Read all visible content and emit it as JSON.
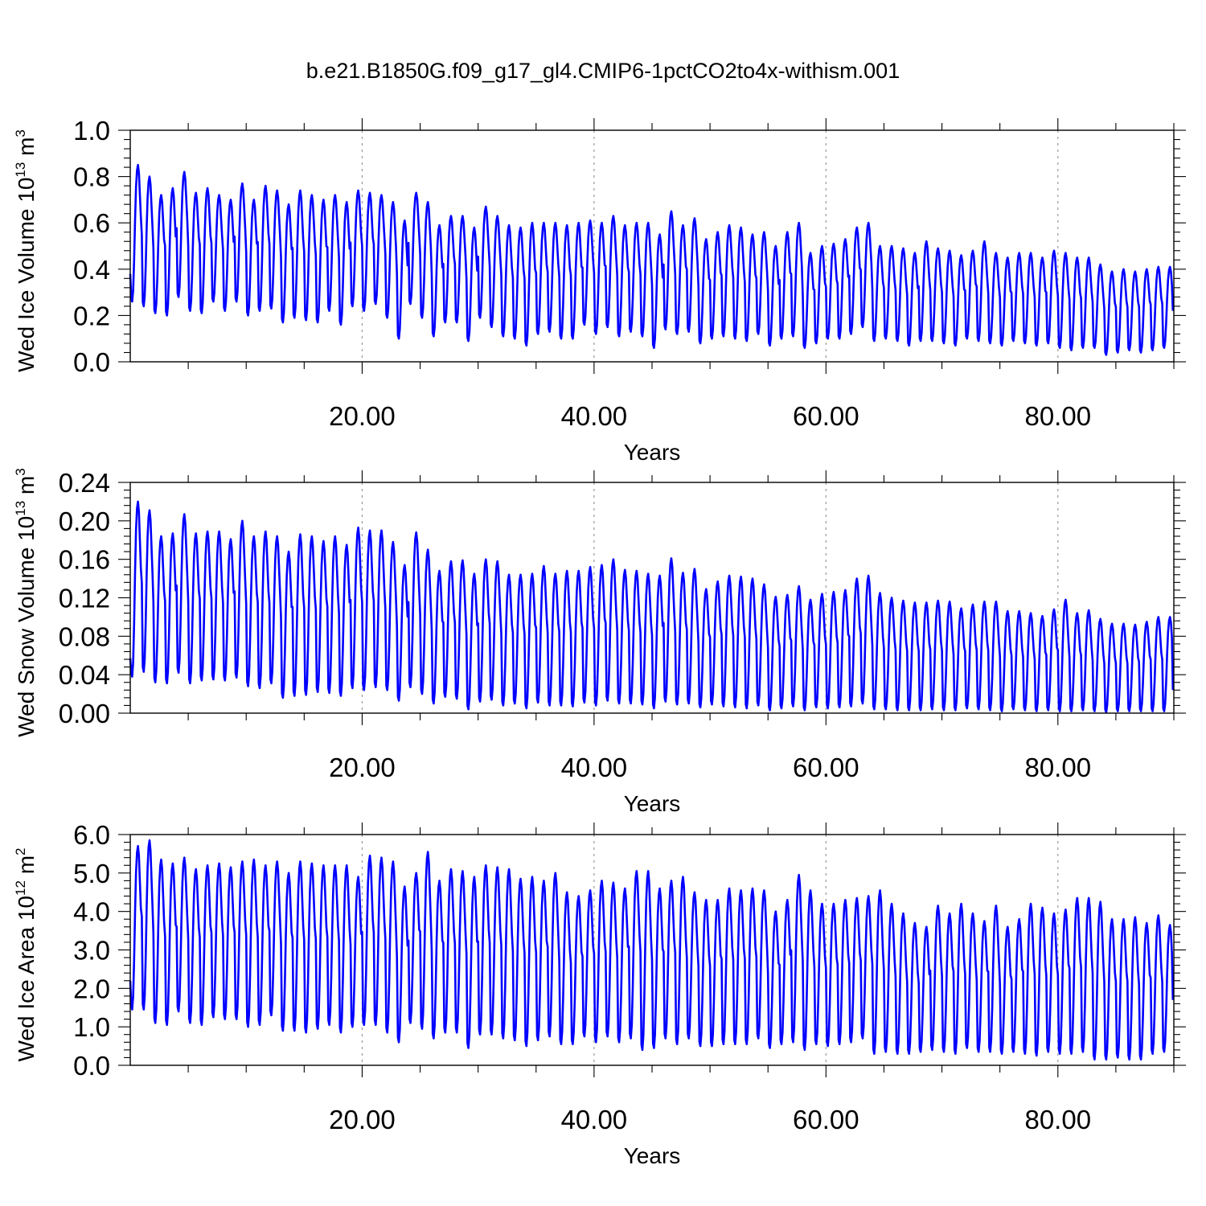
{
  "title": "b.e21.B1850G.f09_g17_gl4.CMIP6-1pctCO2to4x-withism.001",
  "colors": {
    "series": "#0000ff",
    "grid": "#9a9a9a",
    "frame": "#000000"
  },
  "chart_data": [
    {
      "type": "line",
      "title": "",
      "xlabel": "Years",
      "ylabel": {
        "text": "Wed Ice Volume 10",
        "exp": "13",
        "unit": " m",
        "unit_exp": "3"
      },
      "xlim": [
        0,
        90
      ],
      "ylim": [
        0.0,
        1.0
      ],
      "x_ticks": [
        20,
        40,
        60,
        80
      ],
      "x_tick_labels": [
        "20.00",
        "40.00",
        "60.00",
        "80.00"
      ],
      "y_ticks": [
        0.0,
        0.2,
        0.4,
        0.6,
        0.8,
        1.0
      ],
      "y_tick_labels": [
        "0.0",
        "0.2",
        "0.4",
        "0.6",
        "0.8",
        "1.0"
      ],
      "grid": "dashed vertical lines at x major ticks",
      "series": [
        {
          "color": "#0000ff",
          "resolution": "monthly",
          "annual_max": [
            0.85,
            0.8,
            0.72,
            0.75,
            0.82,
            0.73,
            0.75,
            0.72,
            0.7,
            0.77,
            0.7,
            0.76,
            0.74,
            0.68,
            0.74,
            0.72,
            0.7,
            0.72,
            0.69,
            0.74,
            0.73,
            0.72,
            0.69,
            0.61,
            0.73,
            0.69,
            0.59,
            0.63,
            0.63,
            0.58,
            0.67,
            0.63,
            0.59,
            0.58,
            0.6,
            0.6,
            0.6,
            0.59,
            0.6,
            0.61,
            0.6,
            0.63,
            0.59,
            0.6,
            0.6,
            0.55,
            0.65,
            0.59,
            0.62,
            0.53,
            0.56,
            0.59,
            0.58,
            0.55,
            0.56,
            0.5,
            0.56,
            0.6,
            0.47,
            0.5,
            0.51,
            0.53,
            0.58,
            0.6,
            0.5,
            0.5,
            0.49,
            0.47,
            0.52,
            0.49,
            0.48,
            0.46,
            0.48,
            0.52,
            0.47,
            0.45,
            0.47,
            0.47,
            0.45,
            0.48,
            0.47,
            0.45,
            0.45,
            0.42,
            0.39,
            0.4,
            0.39,
            0.4,
            0.41,
            0.41
          ],
          "annual_min": [
            0.26,
            0.24,
            0.21,
            0.2,
            0.28,
            0.22,
            0.21,
            0.26,
            0.22,
            0.26,
            0.2,
            0.22,
            0.23,
            0.17,
            0.19,
            0.18,
            0.17,
            0.22,
            0.16,
            0.24,
            0.22,
            0.25,
            0.19,
            0.1,
            0.25,
            0.19,
            0.11,
            0.17,
            0.17,
            0.09,
            0.19,
            0.15,
            0.11,
            0.1,
            0.07,
            0.12,
            0.13,
            0.1,
            0.1,
            0.16,
            0.12,
            0.15,
            0.11,
            0.13,
            0.11,
            0.06,
            0.14,
            0.12,
            0.13,
            0.08,
            0.1,
            0.11,
            0.1,
            0.09,
            0.12,
            0.07,
            0.1,
            0.11,
            0.06,
            0.08,
            0.1,
            0.1,
            0.12,
            0.15,
            0.09,
            0.1,
            0.09,
            0.07,
            0.09,
            0.09,
            0.08,
            0.07,
            0.1,
            0.09,
            0.08,
            0.07,
            0.09,
            0.08,
            0.07,
            0.08,
            0.06,
            0.05,
            0.06,
            0.06,
            0.03,
            0.04,
            0.05,
            0.04,
            0.05,
            0.06
          ],
          "first": 0.38,
          "last": 0.22
        }
      ]
    },
    {
      "type": "line",
      "title": "",
      "xlabel": "Years",
      "ylabel": {
        "text": "Wed Snow Volume 10",
        "exp": "13",
        "unit": " m",
        "unit_exp": "3"
      },
      "xlim": [
        0,
        90
      ],
      "ylim": [
        0.0,
        0.24
      ],
      "x_ticks": [
        20,
        40,
        60,
        80
      ],
      "x_tick_labels": [
        "20.00",
        "40.00",
        "60.00",
        "80.00"
      ],
      "y_ticks": [
        0.0,
        0.04,
        0.08,
        0.12,
        0.16,
        0.2,
        0.24
      ],
      "y_tick_labels": [
        "0.00",
        "0.04",
        "0.08",
        "0.12",
        "0.16",
        "0.20",
        "0.24"
      ],
      "grid": "dashed vertical lines at x major ticks",
      "series": [
        {
          "color": "#0000ff",
          "resolution": "monthly",
          "annual_max": [
            0.22,
            0.211,
            0.184,
            0.187,
            0.207,
            0.187,
            0.189,
            0.189,
            0.181,
            0.2,
            0.184,
            0.189,
            0.184,
            0.168,
            0.186,
            0.184,
            0.179,
            0.184,
            0.175,
            0.193,
            0.19,
            0.19,
            0.178,
            0.154,
            0.188,
            0.17,
            0.148,
            0.158,
            0.159,
            0.145,
            0.16,
            0.158,
            0.144,
            0.144,
            0.145,
            0.153,
            0.145,
            0.148,
            0.148,
            0.152,
            0.154,
            0.16,
            0.149,
            0.148,
            0.145,
            0.143,
            0.161,
            0.146,
            0.15,
            0.129,
            0.137,
            0.143,
            0.142,
            0.14,
            0.134,
            0.121,
            0.123,
            0.132,
            0.118,
            0.124,
            0.126,
            0.128,
            0.14,
            0.143,
            0.125,
            0.12,
            0.117,
            0.115,
            0.115,
            0.117,
            0.116,
            0.109,
            0.113,
            0.116,
            0.116,
            0.106,
            0.106,
            0.104,
            0.101,
            0.108,
            0.118,
            0.104,
            0.107,
            0.098,
            0.093,
            0.093,
            0.092,
            0.095,
            0.1,
            0.1
          ],
          "annual_min": [
            0.038,
            0.043,
            0.032,
            0.031,
            0.042,
            0.031,
            0.034,
            0.035,
            0.034,
            0.037,
            0.028,
            0.026,
            0.031,
            0.016,
            0.018,
            0.019,
            0.022,
            0.021,
            0.018,
            0.026,
            0.024,
            0.027,
            0.024,
            0.013,
            0.027,
            0.02,
            0.01,
            0.017,
            0.015,
            0.004,
            0.012,
            0.014,
            0.008,
            0.01,
            0.005,
            0.011,
            0.008,
            0.008,
            0.007,
            0.011,
            0.008,
            0.013,
            0.01,
            0.01,
            0.009,
            0.005,
            0.012,
            0.009,
            0.01,
            0.006,
            0.009,
            0.007,
            0.006,
            0.005,
            0.008,
            0.003,
            0.005,
            0.007,
            0.003,
            0.006,
            0.005,
            0.006,
            0.007,
            0.01,
            0.004,
            0.004,
            0.003,
            0.003,
            0.003,
            0.004,
            0.003,
            0.003,
            0.005,
            0.004,
            0.003,
            0.002,
            0.004,
            0.003,
            0.002,
            0.003,
            0.002,
            0.002,
            0.003,
            0.002,
            0.001,
            0.002,
            0.002,
            0.002,
            0.002,
            0.002
          ],
          "first": 0.057,
          "last": 0.024
        }
      ]
    },
    {
      "type": "line",
      "title": "",
      "xlabel": "Years",
      "ylabel": {
        "text": "Wed Ice Area 10",
        "exp": "12",
        "unit": " m",
        "unit_exp": "2"
      },
      "xlim": [
        0,
        90
      ],
      "ylim": [
        0.0,
        6.0
      ],
      "x_ticks": [
        20,
        40,
        60,
        80
      ],
      "x_tick_labels": [
        "20.00",
        "40.00",
        "60.00",
        "80.00"
      ],
      "y_ticks": [
        0.0,
        1.0,
        2.0,
        3.0,
        4.0,
        5.0,
        6.0
      ],
      "y_tick_labels": [
        "0.0",
        "1.0",
        "2.0",
        "3.0",
        "4.0",
        "5.0",
        "6.0"
      ],
      "grid": "dashed vertical lines at x major ticks",
      "series": [
        {
          "color": "#0000ff",
          "resolution": "monthly",
          "annual_max": [
            5.7,
            5.85,
            5.35,
            5.25,
            5.4,
            5.1,
            5.2,
            5.25,
            5.15,
            5.3,
            5.35,
            5.2,
            5.3,
            5.0,
            5.3,
            5.25,
            5.2,
            5.2,
            5.2,
            4.9,
            5.45,
            5.4,
            5.3,
            4.65,
            5.0,
            5.55,
            4.8,
            5.1,
            5.05,
            4.9,
            5.2,
            5.15,
            5.1,
            4.85,
            4.9,
            4.8,
            5.0,
            4.5,
            4.4,
            4.55,
            4.8,
            4.75,
            4.6,
            5.05,
            5.05,
            4.6,
            4.8,
            4.9,
            4.5,
            4.3,
            4.3,
            4.6,
            4.55,
            4.6,
            4.55,
            4.0,
            4.3,
            4.95,
            4.55,
            4.2,
            4.2,
            4.3,
            4.35,
            4.4,
            4.55,
            4.2,
            3.95,
            3.7,
            3.6,
            4.15,
            3.95,
            4.2,
            3.95,
            3.75,
            4.15,
            3.6,
            3.8,
            4.2,
            4.1,
            3.95,
            4.05,
            4.35,
            4.35,
            4.25,
            3.8,
            3.8,
            3.85,
            3.7,
            3.9,
            3.65
          ],
          "annual_min": [
            1.45,
            1.45,
            1.1,
            1.05,
            1.4,
            1.1,
            1.05,
            1.25,
            1.2,
            1.2,
            1.0,
            1.05,
            1.3,
            0.9,
            0.9,
            0.85,
            0.95,
            1.05,
            0.85,
            1.0,
            1.05,
            1.05,
            0.85,
            0.6,
            1.1,
            0.95,
            0.7,
            0.85,
            0.85,
            0.45,
            0.8,
            0.8,
            0.7,
            0.65,
            0.5,
            0.65,
            0.75,
            0.55,
            0.55,
            0.75,
            0.6,
            0.75,
            0.6,
            0.7,
            0.4,
            0.45,
            0.7,
            0.55,
            0.7,
            0.5,
            0.5,
            0.55,
            0.55,
            0.55,
            0.7,
            0.45,
            0.55,
            0.6,
            0.4,
            0.55,
            0.5,
            0.55,
            0.6,
            0.7,
            0.3,
            0.35,
            0.3,
            0.3,
            0.35,
            0.4,
            0.35,
            0.3,
            0.45,
            0.35,
            0.35,
            0.3,
            0.35,
            0.3,
            0.25,
            0.35,
            0.3,
            0.3,
            0.35,
            0.15,
            0.15,
            0.2,
            0.15,
            0.15,
            0.3,
            0.35
          ],
          "first": 2.2,
          "last": 1.7
        }
      ]
    }
  ]
}
